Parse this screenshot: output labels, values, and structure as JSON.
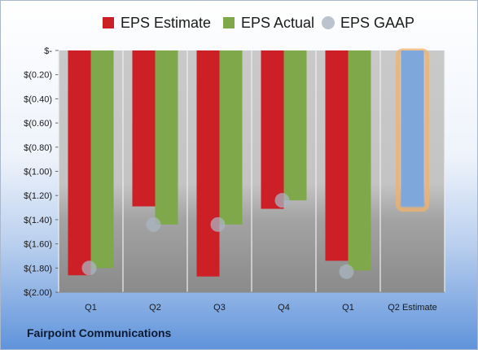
{
  "company": "Fairpoint Communications",
  "chart_data": {
    "type": "bar",
    "categories": [
      "Q1",
      "Q2",
      "Q3",
      "Q4",
      "Q1",
      "Q2 Estimate"
    ],
    "series": [
      {
        "name": "EPS Estimate",
        "color": "#cc1f26",
        "values": [
          -1.86,
          -1.29,
          -1.87,
          -1.31,
          -1.74,
          null
        ]
      },
      {
        "name": "EPS Actual",
        "color": "#7ea84a",
        "values": [
          -1.8,
          -1.44,
          -1.44,
          -1.24,
          -1.82,
          null
        ]
      },
      {
        "name": "EPS GAAP",
        "color": "#a9b4c2",
        "marker": "circle",
        "values": [
          -1.8,
          -1.44,
          -1.44,
          -1.24,
          -1.83,
          null
        ]
      }
    ],
    "estimate": {
      "category": "Q2 Estimate",
      "value": -1.29,
      "color": "#7ea7dc",
      "outline": "#f0b26b"
    },
    "ylim": [
      -2.0,
      0.0
    ],
    "yticks": [
      0,
      -0.2,
      -0.4,
      -0.6,
      -0.8,
      -1.0,
      -1.2,
      -1.4,
      -1.6,
      -1.8,
      -2.0
    ],
    "ytick_labels": [
      "$-",
      "$(0.20)",
      "$(0.40)",
      "$(0.60)",
      "$(0.80)",
      "$(1.00)",
      "$(1.20)",
      "$(1.40)",
      "$(1.60)",
      "$(1.80)",
      "$(2.00)"
    ],
    "title": "",
    "xlabel": "",
    "ylabel": "",
    "legend_position": "top",
    "grid": false
  }
}
